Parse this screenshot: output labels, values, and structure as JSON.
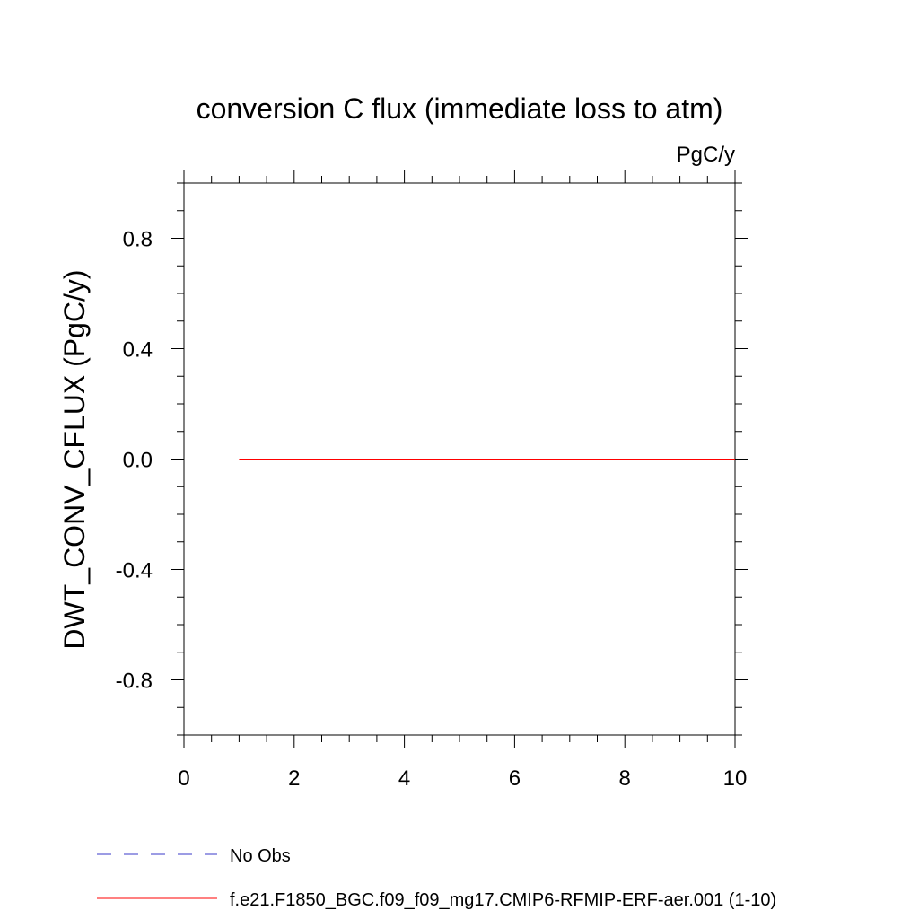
{
  "chart_data": {
    "type": "line",
    "title": "conversion C flux (immediate loss to atm)",
    "units_label": "PgC/y",
    "ylabel": "DWT_CONV_CFLUX  (PgC/y)",
    "xlabel": "",
    "xlim": [
      0,
      10
    ],
    "ylim": [
      -1.0,
      1.0
    ],
    "x_ticks": [
      0,
      2,
      4,
      6,
      8,
      10
    ],
    "x_tick_labels": [
      "0",
      "2",
      "4",
      "6",
      "8",
      "10"
    ],
    "y_ticks": [
      -0.8,
      -0.4,
      0.0,
      0.4,
      0.8
    ],
    "y_tick_labels": [
      "-0.8",
      "-0.4",
      "0.0",
      "0.4",
      "0.8"
    ],
    "grid": false,
    "legend_placement": "bottom",
    "series": [
      {
        "name": "No Obs",
        "color": "#3a3ac8",
        "dash": "dashed",
        "x": [],
        "y": []
      },
      {
        "name": "f.e21.F1850_BGC.f09_f09_mg17.CMIP6-RFMIP-ERF-aer.001 (1-10)",
        "color": "#ff0000",
        "dash": "solid",
        "x": [
          1,
          2,
          3,
          4,
          5,
          6,
          7,
          8,
          9,
          10
        ],
        "y": [
          0,
          0,
          0,
          0,
          0,
          0,
          0,
          0,
          0,
          0
        ]
      }
    ]
  }
}
